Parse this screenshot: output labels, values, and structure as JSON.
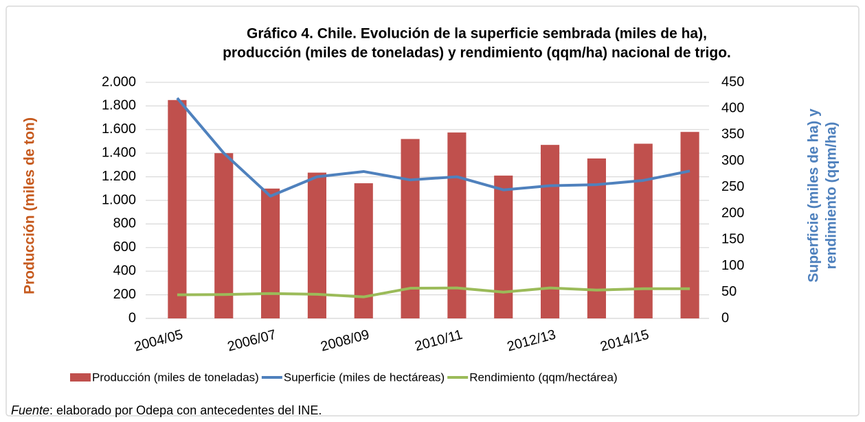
{
  "chart_data": {
    "type": "bar",
    "title": [
      "Gráfico 4. Chile. Evolución de la superficie sembrada (miles de ha),",
      "producción (miles de toneladas) y rendimiento (qqm/ha) nacional de trigo."
    ],
    "ylabel": "Producción (miles de ton)",
    "y2label": [
      "Superficie (miles de ha) y",
      "rendimiento (qqm/ha)"
    ],
    "categories": [
      "2004/05",
      null,
      "2006/07",
      null,
      "2008/09",
      null,
      "2010/11",
      null,
      "2012/13",
      null,
      "2014/15",
      null
    ],
    "series": [
      {
        "name": "Producción (miles de toneladas)",
        "type": "bar",
        "color": "#c0504d",
        "values": [
          1850,
          1400,
          1100,
          1235,
          1145,
          1520,
          1575,
          1210,
          1470,
          1355,
          1480,
          1580
        ]
      },
      {
        "name": "Superficie (miles de hectáreas)",
        "type": "line",
        "axis": "y2",
        "color": "#4f81bd",
        "values": [
          420,
          315,
          233,
          270,
          280,
          264,
          270,
          245,
          253,
          255,
          263,
          281
        ]
      },
      {
        "name": "Rendimiento (qqm/hectárea)",
        "type": "line",
        "axis": "y2",
        "color": "#9bbb59",
        "values": [
          45,
          45.5,
          47.5,
          46,
          41,
          57.5,
          58,
          50,
          58,
          54,
          56.5,
          56.5
        ]
      }
    ],
    "ylim": [
      0,
      2000
    ],
    "yticks": [
      0,
      200,
      400,
      600,
      800,
      {
        "value": 1000,
        "label": "1.000"
      },
      {
        "value": 1200,
        "label": "1.200"
      },
      {
        "value": 1400,
        "label": "1.400"
      },
      {
        "value": 1600,
        "label": "1.600"
      },
      {
        "value": 1800,
        "label": "1.800"
      },
      {
        "value": 2000,
        "label": "2.000"
      }
    ],
    "y2lim": [
      0,
      450
    ],
    "y2ticks": [
      0,
      50,
      100,
      150,
      200,
      250,
      300,
      350,
      400,
      450
    ],
    "grid": true,
    "legend": "bottom",
    "source_label": "Fuente",
    "source_text": ": elaborado por Odepa con antecedentes del INE."
  }
}
